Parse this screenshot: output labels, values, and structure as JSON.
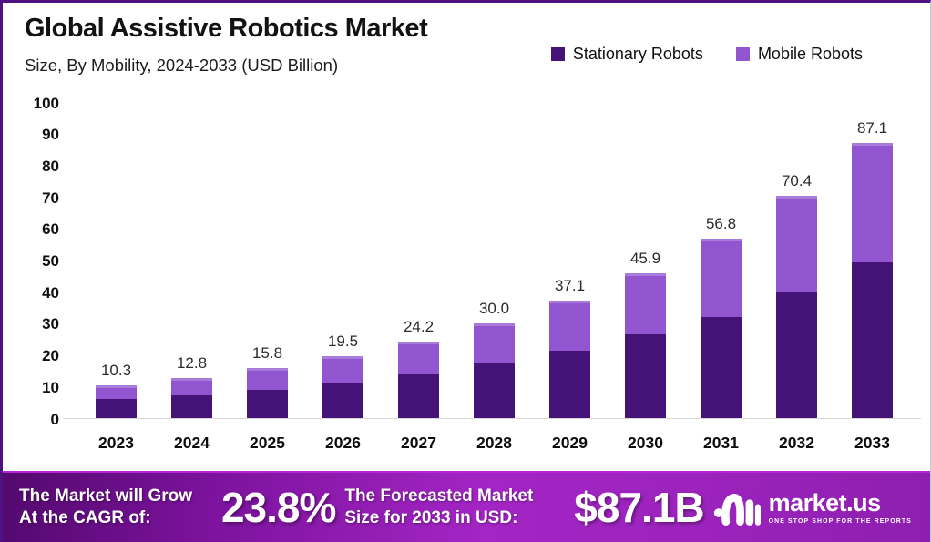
{
  "header": {
    "title": "Global Assistive Robotics Market",
    "subtitle": "Size, By Mobility, 2024-2033 (USD Billion)"
  },
  "legend": [
    {
      "label": "Stationary Robots",
      "color": "#451378"
    },
    {
      "label": "Mobile Robots",
      "color": "#9055cf"
    }
  ],
  "chart_data": {
    "type": "bar",
    "stacked": true,
    "title": "Global Assistive Robotics Market Size, By Mobility, 2024-2033 (USD Billion)",
    "categories": [
      "2023",
      "2024",
      "2025",
      "2026",
      "2027",
      "2028",
      "2029",
      "2030",
      "2031",
      "2032",
      "2033"
    ],
    "series": [
      {
        "name": "Stationary Robots",
        "color": "#451378",
        "values": [
          6.0,
          7.2,
          8.9,
          11.1,
          13.8,
          17.3,
          21.3,
          26.4,
          32.0,
          39.8,
          49.2
        ]
      },
      {
        "name": "Mobile Robots",
        "color": "#9055cf",
        "values": [
          4.3,
          5.6,
          6.9,
          8.4,
          10.4,
          12.7,
          15.8,
          19.5,
          24.8,
          30.6,
          37.9
        ]
      }
    ],
    "total_labels": [
      "10.3",
      "12.8",
      "15.8",
      "19.5",
      "24.2",
      "30.0",
      "37.1",
      "45.9",
      "56.8",
      "70.4",
      "87.1"
    ],
    "xlabel": "",
    "ylabel": "",
    "ylim": [
      0,
      100
    ],
    "yticks": [
      100,
      90,
      80,
      70,
      60,
      50,
      40,
      30,
      20,
      10,
      0
    ],
    "grid": false,
    "legend_position": "top-right"
  },
  "footer": {
    "cagr_label": "The Market will Grow At the CAGR of:",
    "cagr_value": "23.8%",
    "forecast_label": "The Forecasted Market Size for 2033 in USD:",
    "forecast_value": "$87.1B",
    "brand": {
      "wordmark": "market.us",
      "tagline": "ONE STOP SHOP FOR THE REPORTS"
    }
  },
  "colors": {
    "stationary": "#451378",
    "mobile": "#9055cf",
    "footer_gradient_start": "#53096e",
    "footer_gradient_mid": "#a325c4",
    "frame_border": "#4f117f"
  }
}
